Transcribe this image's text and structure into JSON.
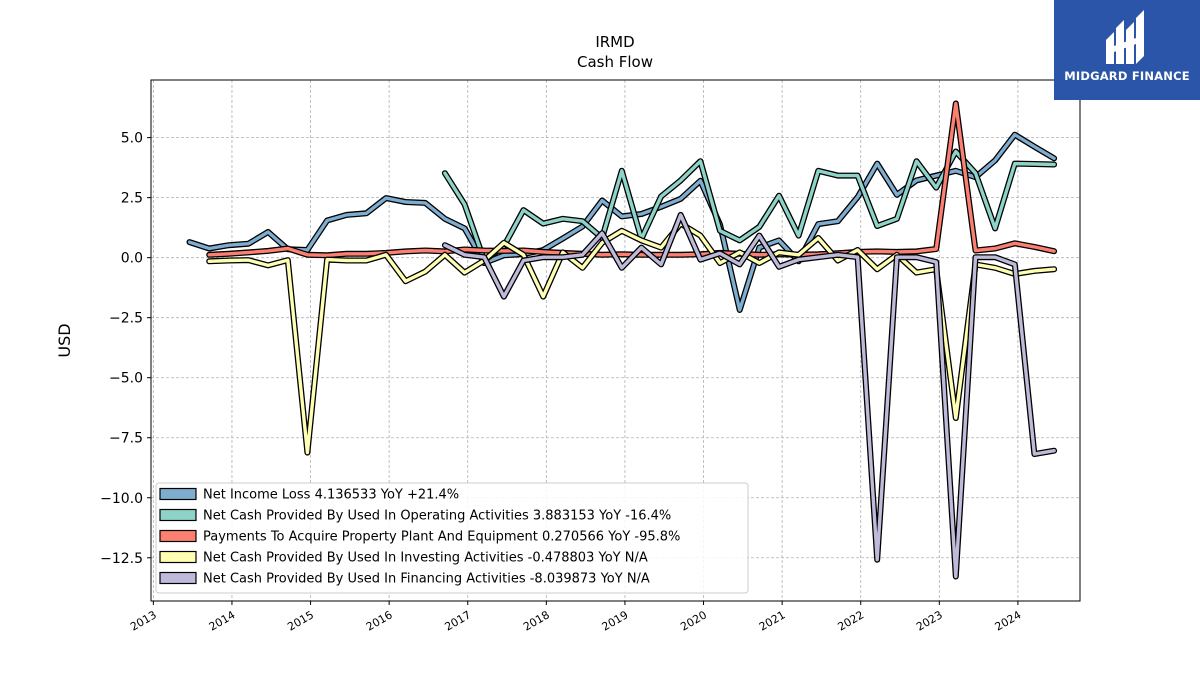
{
  "chart_data": {
    "type": "line",
    "title": "IRMD",
    "subtitle": "Cash Flow",
    "ylabel": "USD",
    "xlabel": "",
    "ylim": [
      -14.3,
      7.4
    ],
    "xlim": [
      2012.97,
      2024.79
    ],
    "yticks": [
      5.0,
      2.5,
      0.0,
      -2.5,
      -5.0,
      -7.5,
      -10.0,
      -12.5
    ],
    "ytick_labels": [
      "5.0",
      "2.5",
      "0.0",
      "−2.5",
      "−5.0",
      "−7.5",
      "−10.0",
      "−12.5"
    ],
    "xticks": [
      2013,
      2014,
      2015,
      2016,
      2017,
      2018,
      2019,
      2020,
      2021,
      2022,
      2023,
      2024
    ],
    "xtick_labels": [
      "2013",
      "2014",
      "2015",
      "2016",
      "2017",
      "2018",
      "2019",
      "2020",
      "2021",
      "2022",
      "2023",
      "2024"
    ],
    "grid": true,
    "legend_position": "lower-left",
    "series": [
      {
        "name": "Net Income Loss",
        "legend": "Net Income Loss  4.136533 YoY +21.4%",
        "color": "#7eadd0",
        "points": [
          [
            2013.46,
            0.65
          ],
          [
            2013.71,
            0.38
          ],
          [
            2013.96,
            0.52
          ],
          [
            2014.21,
            0.58
          ],
          [
            2014.46,
            1.07
          ],
          [
            2014.71,
            0.35
          ],
          [
            2014.96,
            0.32
          ],
          [
            2015.21,
            1.55
          ],
          [
            2015.46,
            1.78
          ],
          [
            2015.71,
            1.85
          ],
          [
            2015.96,
            2.48
          ],
          [
            2016.21,
            2.32
          ],
          [
            2016.46,
            2.28
          ],
          [
            2016.71,
            1.62
          ],
          [
            2016.96,
            1.22
          ],
          [
            2017.21,
            -0.22
          ],
          [
            2017.46,
            0.1
          ],
          [
            2017.71,
            0.15
          ],
          [
            2017.96,
            0.32
          ],
          [
            2018.21,
            0.8
          ],
          [
            2018.46,
            1.3
          ],
          [
            2018.71,
            2.38
          ],
          [
            2018.96,
            1.72
          ],
          [
            2019.21,
            1.82
          ],
          [
            2019.46,
            2.12
          ],
          [
            2019.71,
            2.45
          ],
          [
            2019.96,
            3.2
          ],
          [
            2020.21,
            1.38
          ],
          [
            2020.46,
            -2.18
          ],
          [
            2020.71,
            0.42
          ],
          [
            2020.96,
            0.72
          ],
          [
            2021.21,
            -0.15
          ],
          [
            2021.46,
            1.4
          ],
          [
            2021.71,
            1.52
          ],
          [
            2021.96,
            2.52
          ],
          [
            2022.21,
            3.92
          ],
          [
            2022.46,
            2.62
          ],
          [
            2022.71,
            3.22
          ],
          [
            2022.96,
            3.42
          ],
          [
            2023.21,
            3.62
          ],
          [
            2023.46,
            3.35
          ],
          [
            2023.71,
            4.05
          ],
          [
            2023.96,
            5.12
          ],
          [
            2024.21,
            4.62
          ],
          [
            2024.46,
            4.14
          ]
        ]
      },
      {
        "name": "Net Cash Provided By Used In Operating Activities",
        "legend": "Net Cash Provided By Used In Operating Activities  3.883153 YoY -16.4%",
        "color": "#8dd3c7",
        "points": [
          [
            2016.71,
            3.52
          ],
          [
            2016.96,
            2.22
          ],
          [
            2017.21,
            -0.12
          ],
          [
            2017.46,
            0.48
          ],
          [
            2017.71,
            1.98
          ],
          [
            2017.96,
            1.42
          ],
          [
            2018.21,
            1.62
          ],
          [
            2018.46,
            1.52
          ],
          [
            2018.71,
            0.82
          ],
          [
            2018.96,
            3.62
          ],
          [
            2019.21,
            0.78
          ],
          [
            2019.46,
            2.55
          ],
          [
            2019.71,
            3.22
          ],
          [
            2019.96,
            4.02
          ],
          [
            2020.21,
            1.12
          ],
          [
            2020.46,
            0.72
          ],
          [
            2020.71,
            1.28
          ],
          [
            2020.96,
            2.58
          ],
          [
            2021.21,
            0.92
          ],
          [
            2021.46,
            3.62
          ],
          [
            2021.71,
            3.42
          ],
          [
            2021.96,
            3.42
          ],
          [
            2022.21,
            1.32
          ],
          [
            2022.46,
            1.62
          ],
          [
            2022.71,
            4.02
          ],
          [
            2022.96,
            2.92
          ],
          [
            2023.21,
            4.42
          ],
          [
            2023.46,
            3.52
          ],
          [
            2023.71,
            1.22
          ],
          [
            2023.96,
            3.92
          ],
          [
            2024.21,
            3.9
          ],
          [
            2024.46,
            3.88
          ]
        ]
      },
      {
        "name": "Payments To Acquire Property Plant And Equipment",
        "legend": "Payments To Acquire Property Plant And Equipment  0.270566 YoY -95.8%",
        "color": "#fb8072",
        "points": [
          [
            2013.71,
            0.12
          ],
          [
            2013.96,
            0.16
          ],
          [
            2014.21,
            0.22
          ],
          [
            2014.46,
            0.28
          ],
          [
            2014.71,
            0.38
          ],
          [
            2014.96,
            0.12
          ],
          [
            2015.21,
            0.1
          ],
          [
            2015.46,
            0.16
          ],
          [
            2015.71,
            0.16
          ],
          [
            2015.96,
            0.2
          ],
          [
            2016.21,
            0.26
          ],
          [
            2016.46,
            0.3
          ],
          [
            2016.71,
            0.26
          ],
          [
            2016.96,
            0.34
          ],
          [
            2017.21,
            0.3
          ],
          [
            2017.46,
            0.28
          ],
          [
            2017.71,
            0.3
          ],
          [
            2017.96,
            0.24
          ],
          [
            2018.21,
            0.2
          ],
          [
            2018.46,
            0.16
          ],
          [
            2018.71,
            0.12
          ],
          [
            2018.96,
            0.14
          ],
          [
            2019.21,
            0.12
          ],
          [
            2019.46,
            0.12
          ],
          [
            2019.71,
            0.12
          ],
          [
            2019.96,
            0.14
          ],
          [
            2020.21,
            0.2
          ],
          [
            2020.46,
            0.16
          ],
          [
            2020.71,
            0.12
          ],
          [
            2020.96,
            0.14
          ],
          [
            2021.21,
            0.12
          ],
          [
            2021.46,
            0.14
          ],
          [
            2021.71,
            0.18
          ],
          [
            2021.96,
            0.24
          ],
          [
            2022.21,
            0.26
          ],
          [
            2022.46,
            0.24
          ],
          [
            2022.71,
            0.26
          ],
          [
            2022.96,
            0.36
          ],
          [
            2023.21,
            6.42
          ],
          [
            2023.46,
            0.3
          ],
          [
            2023.71,
            0.38
          ],
          [
            2023.96,
            0.6
          ],
          [
            2024.21,
            0.45
          ],
          [
            2024.46,
            0.27
          ]
        ]
      },
      {
        "name": "Net Cash Provided By Used In Investing Activities",
        "legend": "Net Cash Provided By Used In Investing Activities  -0.478803 YoY N/A",
        "color": "#ffffb3",
        "points": [
          [
            2013.71,
            -0.15
          ],
          [
            2013.96,
            -0.12
          ],
          [
            2014.21,
            -0.1
          ],
          [
            2014.46,
            -0.32
          ],
          [
            2014.71,
            -0.1
          ],
          [
            2014.96,
            -8.12
          ],
          [
            2015.21,
            -0.08
          ],
          [
            2015.46,
            -0.12
          ],
          [
            2015.71,
            -0.12
          ],
          [
            2015.96,
            0.12
          ],
          [
            2016.21,
            -0.98
          ],
          [
            2016.46,
            -0.58
          ],
          [
            2016.71,
            0.12
          ],
          [
            2016.96,
            -0.62
          ],
          [
            2017.21,
            -0.12
          ],
          [
            2017.46,
            0.62
          ],
          [
            2017.71,
            0.12
          ],
          [
            2017.96,
            -1.62
          ],
          [
            2018.21,
            0.22
          ],
          [
            2018.46,
            -0.42
          ],
          [
            2018.71,
            0.62
          ],
          [
            2018.96,
            1.12
          ],
          [
            2019.21,
            0.72
          ],
          [
            2019.46,
            0.42
          ],
          [
            2019.71,
            1.42
          ],
          [
            2019.96,
            0.92
          ],
          [
            2020.21,
            -0.22
          ],
          [
            2020.46,
            0.22
          ],
          [
            2020.71,
            -0.22
          ],
          [
            2020.96,
            0.22
          ],
          [
            2021.21,
            0.12
          ],
          [
            2021.46,
            0.82
          ],
          [
            2021.71,
            -0.12
          ],
          [
            2021.96,
            0.32
          ],
          [
            2022.21,
            -0.48
          ],
          [
            2022.46,
            0.12
          ],
          [
            2022.71,
            -0.62
          ],
          [
            2022.96,
            -0.48
          ],
          [
            2023.21,
            -6.68
          ],
          [
            2023.46,
            -0.28
          ],
          [
            2023.71,
            -0.42
          ],
          [
            2023.96,
            -0.68
          ],
          [
            2024.21,
            -0.55
          ],
          [
            2024.46,
            -0.48
          ]
        ]
      },
      {
        "name": "Net Cash Provided By Used In Financing Activities",
        "legend": "Net Cash Provided By Used In Financing Activities  -8.039873 YoY N/A",
        "color": "#bebada",
        "points": [
          [
            2016.71,
            0.52
          ],
          [
            2016.96,
            0.12
          ],
          [
            2017.21,
            0.02
          ],
          [
            2017.46,
            -1.62
          ],
          [
            2017.71,
            -0.12
          ],
          [
            2017.96,
            0.02
          ],
          [
            2018.21,
            0.02
          ],
          [
            2018.46,
            0.12
          ],
          [
            2018.71,
            1.02
          ],
          [
            2018.96,
            -0.42
          ],
          [
            2019.21,
            0.42
          ],
          [
            2019.46,
            -0.28
          ],
          [
            2019.71,
            1.78
          ],
          [
            2019.96,
            -0.08
          ],
          [
            2020.21,
            0.18
          ],
          [
            2020.46,
            -0.28
          ],
          [
            2020.71,
            0.92
          ],
          [
            2020.96,
            -0.38
          ],
          [
            2021.21,
            -0.08
          ],
          [
            2021.46,
            0.02
          ],
          [
            2021.71,
            0.12
          ],
          [
            2021.96,
            0.02
          ],
          [
            2022.21,
            -12.58
          ],
          [
            2022.46,
            0.02
          ],
          [
            2022.71,
            0.02
          ],
          [
            2022.96,
            -0.18
          ],
          [
            2023.21,
            -13.28
          ],
          [
            2023.46,
            0.02
          ],
          [
            2023.71,
            0.02
          ],
          [
            2023.96,
            -0.28
          ],
          [
            2024.21,
            -8.18
          ],
          [
            2024.46,
            -8.04
          ]
        ]
      }
    ]
  },
  "logo": {
    "text": "MIDGARD FINANCE",
    "bg_color": "#2b55a8"
  }
}
